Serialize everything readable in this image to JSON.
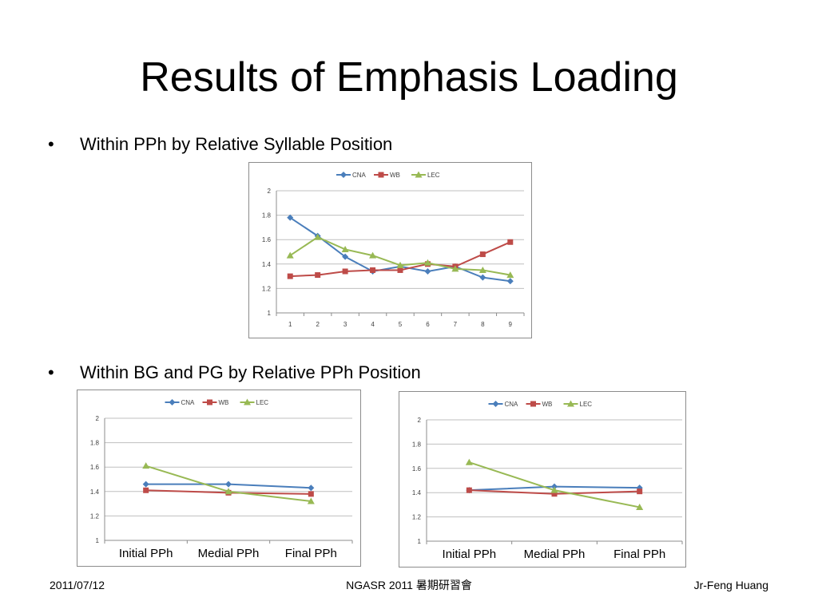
{
  "slide": {
    "title": "Results of Emphasis Loading",
    "bullet_marker": "•",
    "bullet1": "Within PPh by Relative Syllable Position",
    "bullet2": "Within BG and PG by Relative PPh Position"
  },
  "footer": {
    "date": "2011/07/12",
    "event": "NGASR 2011 暑期研習會",
    "author": "Jr-Feng Huang"
  },
  "colors": {
    "CNA": "#4a7ebb",
    "WB": "#be4b48",
    "LEC": "#98b954"
  },
  "chart_data": [
    {
      "type": "line",
      "title": "",
      "xlabel": "",
      "ylabel": "",
      "categories": [
        "1",
        "2",
        "3",
        "4",
        "5",
        "6",
        "7",
        "8",
        "9"
      ],
      "ylim": [
        1,
        2
      ],
      "yticks": [
        "1",
        "1.2",
        "1.4",
        "1.6",
        "1.8",
        "2"
      ],
      "grid": true,
      "legend": "top",
      "series": [
        {
          "name": "CNA",
          "marker": "diamond",
          "values": [
            1.78,
            1.63,
            1.46,
            1.34,
            1.38,
            1.34,
            1.38,
            1.29,
            1.26
          ]
        },
        {
          "name": "WB",
          "marker": "square",
          "values": [
            1.3,
            1.31,
            1.34,
            1.35,
            1.35,
            1.4,
            1.38,
            1.48,
            1.58
          ]
        },
        {
          "name": "LEC",
          "marker": "triangle",
          "values": [
            1.47,
            1.62,
            1.52,
            1.47,
            1.39,
            1.41,
            1.36,
            1.35,
            1.31
          ]
        }
      ]
    },
    {
      "type": "line",
      "title": "",
      "xlabel": "",
      "ylabel": "",
      "categories": [
        "Initial PPh",
        "Medial PPh",
        "Final PPh"
      ],
      "ylim": [
        1,
        2
      ],
      "yticks": [
        "1",
        "1.2",
        "1.4",
        "1.6",
        "1.8",
        "2"
      ],
      "grid": true,
      "legend": "top",
      "series": [
        {
          "name": "CNA",
          "marker": "diamond",
          "values": [
            1.46,
            1.46,
            1.43
          ]
        },
        {
          "name": "WB",
          "marker": "square",
          "values": [
            1.41,
            1.39,
            1.38
          ]
        },
        {
          "name": "LEC",
          "marker": "triangle",
          "values": [
            1.61,
            1.4,
            1.32
          ]
        }
      ]
    },
    {
      "type": "line",
      "title": "",
      "xlabel": "",
      "ylabel": "",
      "categories": [
        "Initial PPh",
        "Medial PPh",
        "Final PPh"
      ],
      "ylim": [
        1,
        2
      ],
      "yticks": [
        "1",
        "1.2",
        "1.4",
        "1.6",
        "1.8",
        "2"
      ],
      "grid": true,
      "legend": "top",
      "series": [
        {
          "name": "CNA",
          "marker": "diamond",
          "values": [
            1.42,
            1.45,
            1.44
          ]
        },
        {
          "name": "WB",
          "marker": "square",
          "values": [
            1.42,
            1.39,
            1.41
          ]
        },
        {
          "name": "LEC",
          "marker": "triangle",
          "values": [
            1.65,
            1.42,
            1.28
          ]
        }
      ]
    }
  ]
}
